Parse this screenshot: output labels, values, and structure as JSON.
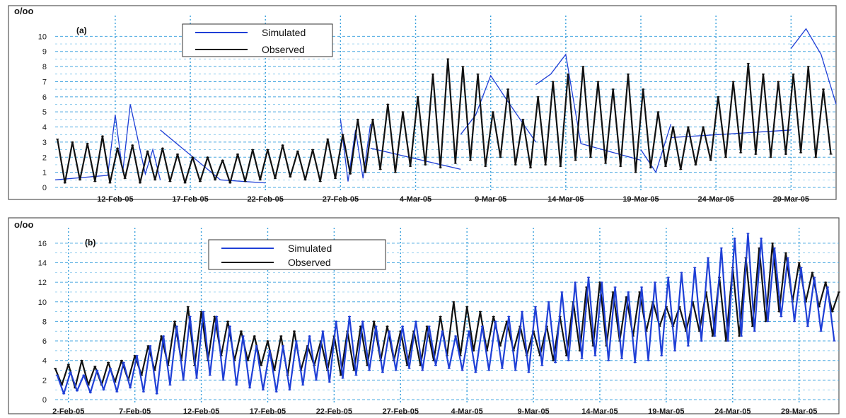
{
  "chart_data": [
    {
      "type": "line",
      "panel_label": "(a)",
      "unit_label": "o/oo",
      "x_range": [
        "2005-02-08",
        "2005-04-01"
      ],
      "ylim": [
        0,
        11
      ],
      "yticks": [
        0,
        1,
        2,
        3,
        4,
        5,
        6,
        7,
        8,
        9,
        10
      ],
      "xticks": [
        "12-Feb-05",
        "17-Feb-05",
        "22-Feb-05",
        "27-Feb-05",
        "4-Mar-05",
        "9-Mar-05",
        "14-Mar-05",
        "19-Mar-05",
        "24-Mar-05",
        "29-Mar-05"
      ],
      "xtick_dates": [
        "2005-02-12",
        "2005-02-17",
        "2005-02-22",
        "2005-02-27",
        "2005-03-04",
        "2005-03-09",
        "2005-03-14",
        "2005-03-19",
        "2005-03-24",
        "2005-03-29"
      ],
      "grid": true,
      "legend_position": "top-center",
      "series": [
        {
          "name": "Simulated",
          "color": "#1f3fd6",
          "segments": [
            {
              "x": [
                "2005-02-08",
                "2005-02-11T12:00",
                "2005-02-12",
                "2005-02-12T12:00",
                "2005-02-13",
                "2005-02-14",
                "2005-02-14T12:00",
                "2005-02-15"
              ],
              "y": [
                0.5,
                0.8,
                4.8,
                1.0,
                5.5,
                0.9,
                2.5,
                0.5
              ]
            },
            {
              "x": [
                "2005-02-15",
                "2005-02-19"
              ],
              "y": [
                3.8,
                0.5
              ]
            },
            {
              "x": [
                "2005-02-19",
                "2005-02-22"
              ],
              "y": [
                0.5,
                0.3
              ]
            },
            {
              "x": [
                "2005-02-27T00:00",
                "2005-02-27T12:00",
                "2005-02-28",
                "2005-02-28T12:00",
                "2005-03-01"
              ],
              "y": [
                4.5,
                0.4,
                3.8,
                0.6,
                4.2
              ]
            },
            {
              "x": [
                "2005-03-01",
                "2005-03-07"
              ],
              "y": [
                2.6,
                1.2
              ]
            },
            {
              "x": [
                "2005-03-07",
                "2005-03-08",
                "2005-03-09",
                "2005-03-10"
              ],
              "y": [
                3.5,
                4.8,
                7.4,
                5.9
              ]
            },
            {
              "x": [
                "2005-03-10",
                "2005-03-12"
              ],
              "y": [
                5.9,
                3.0
              ]
            },
            {
              "x": [
                "2005-03-12",
                "2005-03-13",
                "2005-03-14",
                "2005-03-15"
              ],
              "y": [
                6.8,
                7.5,
                8.8,
                2.9
              ]
            },
            {
              "x": [
                "2005-03-15",
                "2005-03-19"
              ],
              "y": [
                2.9,
                1.8
              ]
            },
            {
              "x": [
                "2005-03-19",
                "2005-03-20",
                "2005-03-21"
              ],
              "y": [
                2.5,
                1.0,
                4.2
              ]
            },
            {
              "x": [
                "2005-03-21",
                "2005-03-29"
              ],
              "y": [
                3.3,
                3.8
              ]
            },
            {
              "x": [
                "2005-03-29",
                "2005-03-30",
                "2005-03-31",
                "2005-04-01"
              ],
              "y": [
                9.2,
                10.5,
                8.8,
                5.5
              ]
            }
          ]
        },
        {
          "name": "Observed",
          "color": "#111111",
          "daily_min": [
            0.3,
            0.5,
            0.4,
            0.3,
            0.6,
            0.3,
            0.5,
            0.4,
            0.3,
            0.4,
            0.5,
            0.3,
            0.4,
            0.5,
            0.6,
            0.7,
            0.5,
            0.4,
            0.6,
            0.9,
            1.0,
            1.2,
            1.0,
            1.4,
            1.5,
            1.3,
            1.6,
            1.8,
            1.4,
            2.0,
            1.5,
            1.3,
            1.5,
            1.4,
            1.8,
            2.0,
            1.6,
            1.4,
            1.0,
            1.3,
            1.4,
            1.2,
            1.5,
            1.8,
            2.0,
            2.3,
            2.2,
            2.0,
            2.2,
            2.3,
            2.0,
            2.2
          ],
          "daily_max": [
            3.2,
            3.0,
            2.9,
            3.4,
            2.6,
            2.8,
            2.4,
            2.6,
            2.2,
            2.0,
            2.0,
            1.8,
            2.2,
            2.5,
            2.5,
            2.8,
            2.4,
            2.5,
            3.2,
            3.5,
            4.5,
            4.5,
            5.5,
            5.0,
            6.0,
            7.5,
            8.5,
            8.0,
            7.5,
            5.0,
            6.5,
            4.5,
            6.0,
            7.0,
            7.5,
            8.0,
            7.0,
            6.5,
            7.5,
            6.5,
            5.0,
            4.0,
            4.0,
            4.0,
            6.0,
            7.0,
            8.2,
            7.5,
            7.0,
            7.5,
            8.0,
            6.5
          ]
        }
      ]
    },
    {
      "type": "line",
      "panel_label": "(b)",
      "unit_label": "o/oo",
      "x_range": [
        "2005-02-01",
        "2005-04-01"
      ],
      "ylim": [
        0,
        17
      ],
      "yticks": [
        0,
        2,
        4,
        6,
        8,
        10,
        12,
        14,
        16
      ],
      "xticks": [
        "2-Feb-05",
        "7-Feb-05",
        "12-Feb-05",
        "17-Feb-05",
        "22-Feb-05",
        "27-Feb-05",
        "4-Mar-05",
        "9-Mar-05",
        "14-Mar-05",
        "19-Mar-05",
        "24-Mar-05",
        "29-Mar-05"
      ],
      "xtick_dates": [
        "2005-02-02",
        "2005-02-07",
        "2005-02-12",
        "2005-02-17",
        "2005-02-22",
        "2005-02-27",
        "2005-03-04",
        "2005-03-09",
        "2005-03-14",
        "2005-03-19",
        "2005-03-24",
        "2005-03-29"
      ],
      "grid": true,
      "legend_position": "top-center",
      "series": [
        {
          "name": "Observed",
          "color": "#111111",
          "daily_min": [
            1.5,
            1.2,
            1.5,
            1.5,
            1.8,
            2.0,
            2.5,
            3.0,
            3.5,
            4.0,
            3.5,
            4.0,
            4.5,
            4.0,
            4.0,
            3.5,
            3.0,
            2.5,
            3.0,
            3.5,
            3.0,
            2.5,
            3.0,
            3.5,
            4.0,
            4.0,
            3.5,
            3.5,
            4.0,
            4.5,
            4.5,
            5.0,
            5.0,
            5.5,
            5.0,
            4.5,
            4.5,
            4.0,
            4.5,
            5.0,
            5.5,
            5.5,
            6.0,
            6.5,
            7.0,
            7.5,
            7.5,
            7.0,
            7.0,
            6.5,
            6.0,
            6.5,
            7.5,
            8.0,
            9.0,
            10.0,
            10.0,
            9.5,
            9.0,
            8.5
          ],
          "daily_max": [
            3.2,
            3.6,
            4.0,
            3.4,
            3.8,
            4.0,
            4.5,
            5.5,
            6.5,
            8.0,
            9.5,
            9.0,
            8.5,
            8.0,
            7.0,
            6.5,
            6.0,
            6.5,
            7.0,
            5.5,
            6.0,
            6.5,
            7.0,
            7.5,
            8.0,
            7.5,
            7.0,
            7.0,
            7.5,
            8.5,
            10.0,
            9.5,
            9.0,
            8.5,
            8.0,
            7.5,
            7.0,
            7.5,
            8.5,
            10.0,
            11.5,
            12.0,
            11.0,
            10.5,
            11.0,
            10.0,
            9.5,
            9.5,
            10.0,
            11.0,
            12.5,
            13.5,
            14.5,
            15.5,
            16.0,
            15.0,
            14.0,
            13.0,
            12.0,
            11.0
          ]
        },
        {
          "name": "Simulated",
          "color": "#1f3fd6",
          "daily_min": [
            0.6,
            0.9,
            0.7,
            1.0,
            0.8,
            1.2,
            0.8,
            0.6,
            1.5,
            2.0,
            2.2,
            2.5,
            2.0,
            1.5,
            1.2,
            1.0,
            0.8,
            1.0,
            1.5,
            2.0,
            1.8,
            2.2,
            2.5,
            3.0,
            2.8,
            3.0,
            3.2,
            3.0,
            3.5,
            3.2,
            3.0,
            2.8,
            3.0,
            3.2,
            3.0,
            2.8,
            3.5,
            3.8,
            4.0,
            4.2,
            4.5,
            4.0,
            4.2,
            3.8,
            4.0,
            4.5,
            5.0,
            5.5,
            6.0,
            6.5,
            6.0,
            6.5,
            7.0,
            8.0,
            8.5,
            8.0,
            7.5,
            7.0,
            6.0,
            5.0
          ],
          "daily_max": [
            2.5,
            2.8,
            2.5,
            3.0,
            3.2,
            3.8,
            4.5,
            5.5,
            6.5,
            7.5,
            8.5,
            9.0,
            8.5,
            7.5,
            6.5,
            5.5,
            5.0,
            5.5,
            6.0,
            6.5,
            7.0,
            8.0,
            8.5,
            8.0,
            7.5,
            7.0,
            7.5,
            8.0,
            7.5,
            7.0,
            6.5,
            7.0,
            7.5,
            8.0,
            8.5,
            9.0,
            9.5,
            10.0,
            11.0,
            12.0,
            12.5,
            12.0,
            11.5,
            11.0,
            11.5,
            12.0,
            12.5,
            13.0,
            13.5,
            14.5,
            15.5,
            16.5,
            17.0,
            16.5,
            15.5,
            14.5,
            13.5,
            12.5,
            11.5,
            11.0
          ]
        }
      ]
    }
  ]
}
